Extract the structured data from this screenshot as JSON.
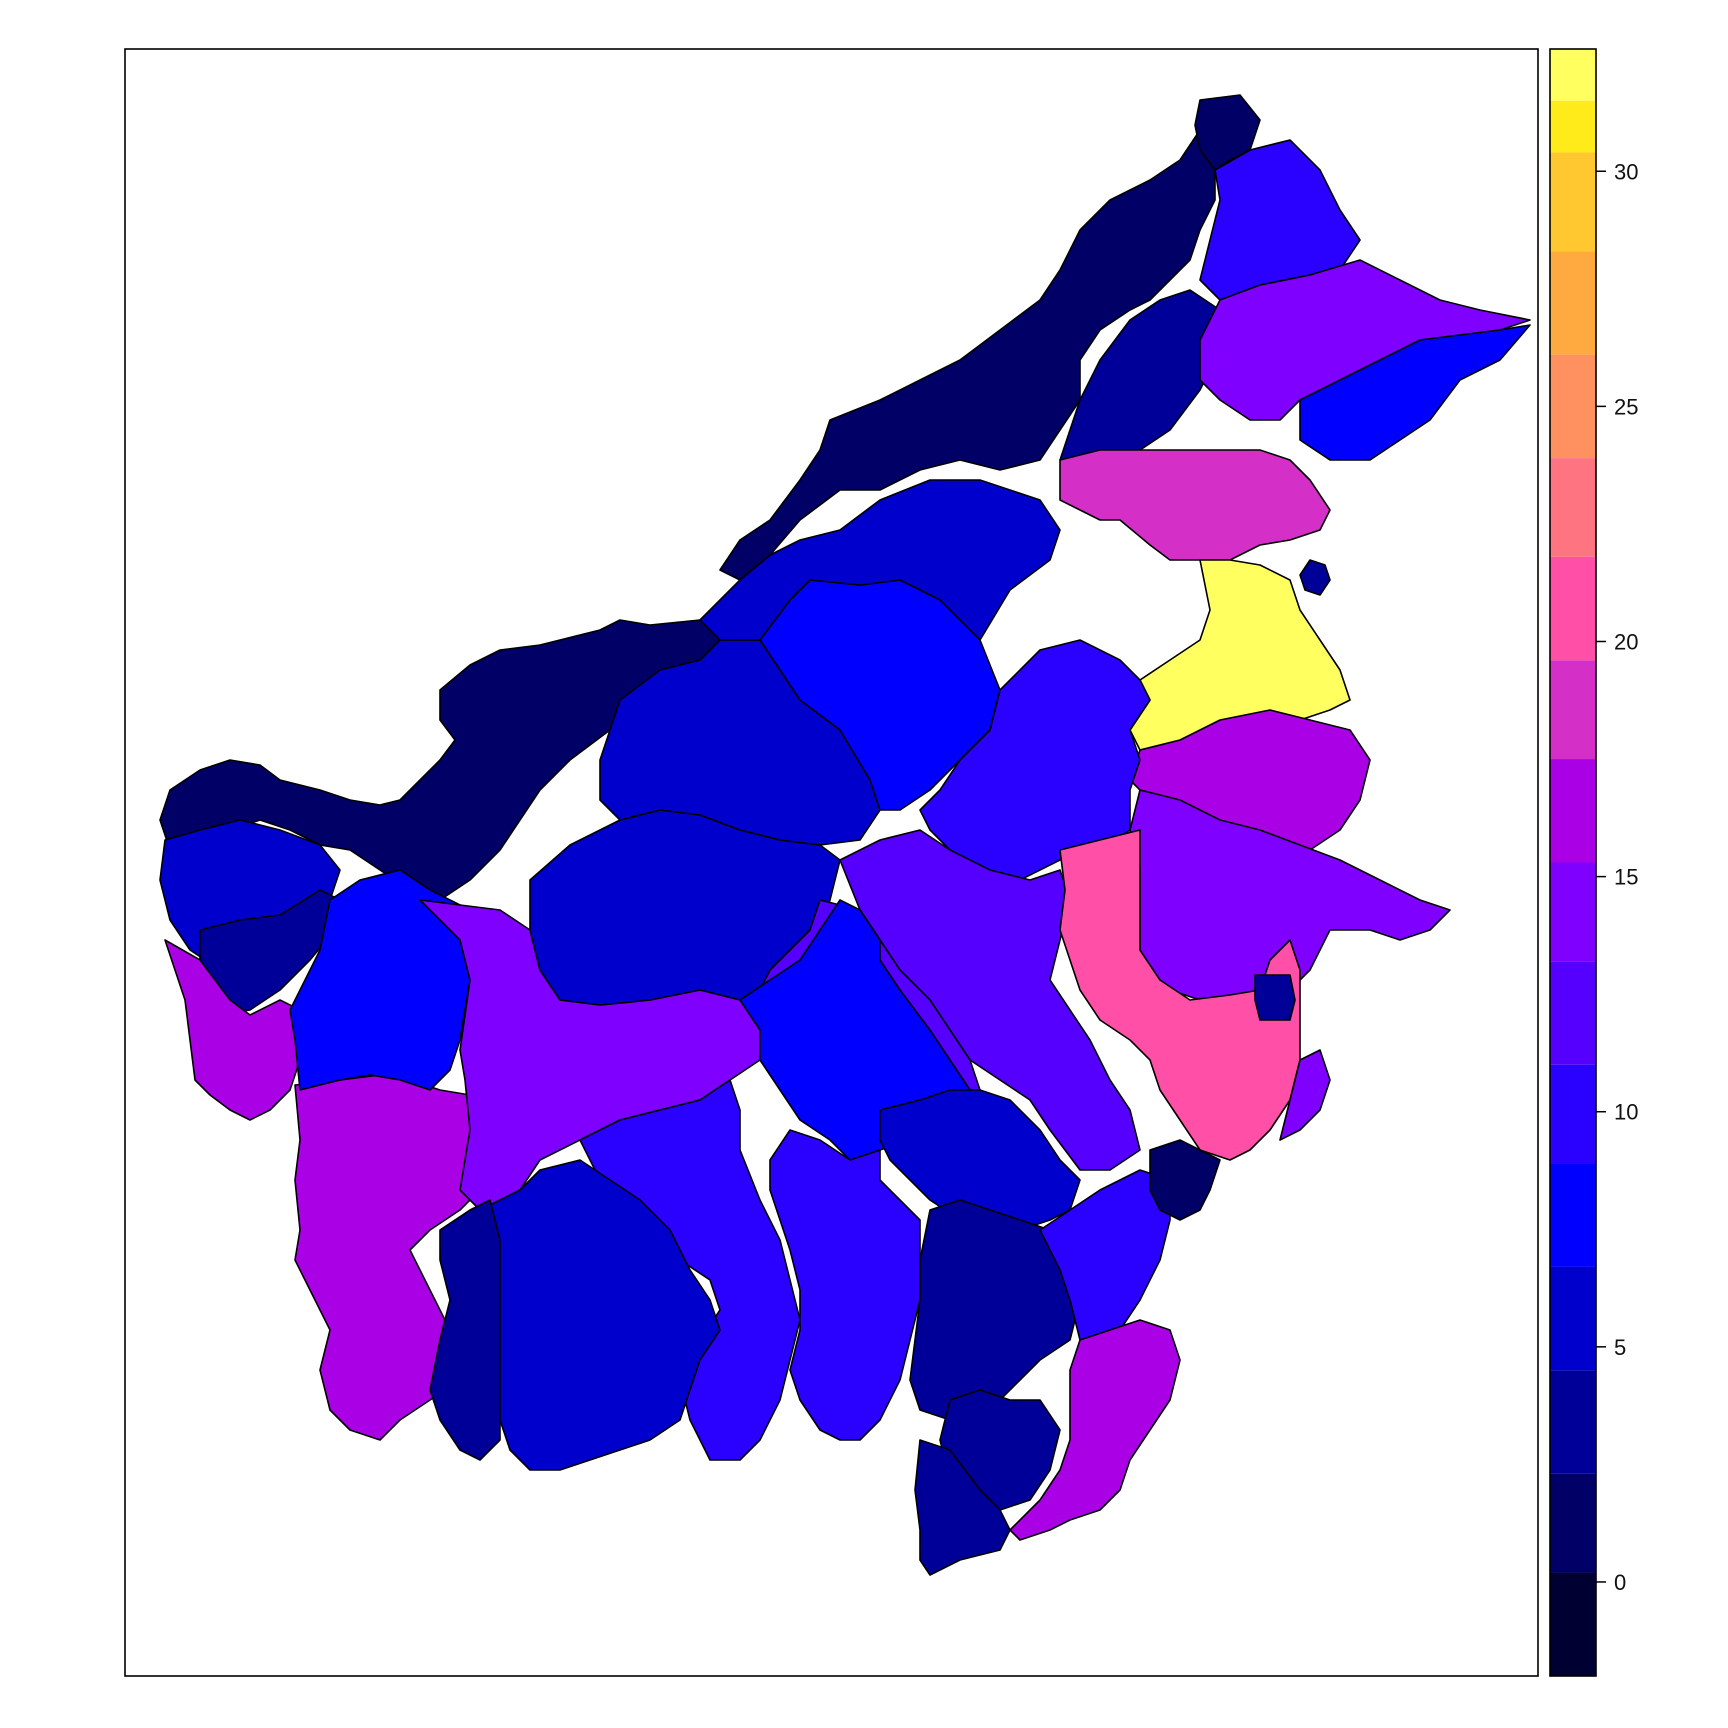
{
  "map": {
    "colorbar": {
      "ticks": [
        0,
        5,
        10,
        15,
        20,
        25,
        30
      ],
      "range": [
        -2,
        32.6
      ],
      "bins": [
        {
          "from": -2.0,
          "to": 0.2,
          "color": "#000033"
        },
        {
          "from": 0.2,
          "to": 2.3,
          "color": "#000066"
        },
        {
          "from": 2.3,
          "to": 4.5,
          "color": "#000099"
        },
        {
          "from": 4.5,
          "to": 6.7,
          "color": "#0000CC"
        },
        {
          "from": 6.7,
          "to": 8.9,
          "color": "#0000FF"
        },
        {
          "from": 8.9,
          "to": 11.0,
          "color": "#2A00FF"
        },
        {
          "from": 11.0,
          "to": 13.2,
          "color": "#5500FF"
        },
        {
          "from": 13.2,
          "to": 15.3,
          "color": "#7F00FF"
        },
        {
          "from": 15.3,
          "to": 17.5,
          "color": "#AA00E6"
        },
        {
          "from": 17.5,
          "to": 19.6,
          "color": "#D42FC6"
        },
        {
          "from": 19.6,
          "to": 21.8,
          "color": "#FF4FA6"
        },
        {
          "from": 21.8,
          "to": 23.9,
          "color": "#FF7481"
        },
        {
          "from": 23.9,
          "to": 26.1,
          "color": "#FF9060"
        },
        {
          "from": 26.1,
          "to": 28.3,
          "color": "#FFAA40"
        },
        {
          "from": 28.3,
          "to": 30.4,
          "color": "#FFC831"
        },
        {
          "from": 30.4,
          "to": 31.5,
          "color": "#FFEB1A"
        },
        {
          "from": 31.5,
          "to": 32.6,
          "color": "#FFFF60"
        }
      ]
    },
    "regions": [
      {
        "id": "north-tip",
        "value": 1.5
      },
      {
        "id": "sabah-west-coast",
        "value": 0.5
      },
      {
        "id": "sabah-northeast",
        "value": 9.5
      },
      {
        "id": "sabah-east",
        "value": 13.5
      },
      {
        "id": "sabah-sandakan",
        "value": 8.0
      },
      {
        "id": "sabah-interior",
        "value": 3.5
      },
      {
        "id": "sabah-tawau",
        "value": 17.5
      },
      {
        "id": "sarawak-miri",
        "value": 5.5
      },
      {
        "id": "sarawak-kapit",
        "value": 7.5
      },
      {
        "id": "sarawak-interior",
        "value": 6.0
      },
      {
        "id": "sarawak-coast",
        "value": 1.0
      },
      {
        "id": "sarawak-kuching",
        "value": 5.0
      },
      {
        "id": "north-kaltara",
        "value": 31.5
      },
      {
        "id": "kaltara-east",
        "value": 17.0
      },
      {
        "id": "kaltim-north",
        "value": 14.5
      },
      {
        "id": "kaltim-bontang",
        "value": 21.0
      },
      {
        "id": "kaltim-center",
        "value": 9.0
      },
      {
        "id": "kaltim-kutai",
        "value": 13.0
      },
      {
        "id": "kaltim-east",
        "value": 15.0
      },
      {
        "id": "balikpapan",
        "value": 2.0
      },
      {
        "id": "kalsel-east",
        "value": 9.5
      },
      {
        "id": "kalsel-kotabaru",
        "value": 16.0
      },
      {
        "id": "kalsel-south",
        "value": 3.0
      },
      {
        "id": "kalteng-east",
        "value": 6.5
      },
      {
        "id": "kalteng-center",
        "value": 7.0
      },
      {
        "id": "kalteng-barito",
        "value": 3.5
      },
      {
        "id": "kalteng-katingan",
        "value": 10.5
      },
      {
        "id": "kalteng-seruyan",
        "value": 5.5
      },
      {
        "id": "kalteng-west",
        "value": 2.5
      },
      {
        "id": "kalbar-ketapang",
        "value": 17.0
      },
      {
        "id": "kalbar-sintang",
        "value": 13.5
      },
      {
        "id": "kalbar-kapuas-hulu",
        "value": 6.5
      },
      {
        "id": "kalbar-landak",
        "value": 7.0
      },
      {
        "id": "kalbar-coast",
        "value": 16.5
      },
      {
        "id": "kalbar-sambas",
        "value": 4.0
      },
      {
        "id": "mahakam-hulu",
        "value": 13.0
      },
      {
        "id": "kaltim-paser",
        "value": 10.0
      },
      {
        "id": "kalsel-tabalong",
        "value": 3.0
      },
      {
        "id": "bontang-dot",
        "value": 3.0
      },
      {
        "id": "tarakan-island",
        "value": 3.5
      }
    ]
  }
}
